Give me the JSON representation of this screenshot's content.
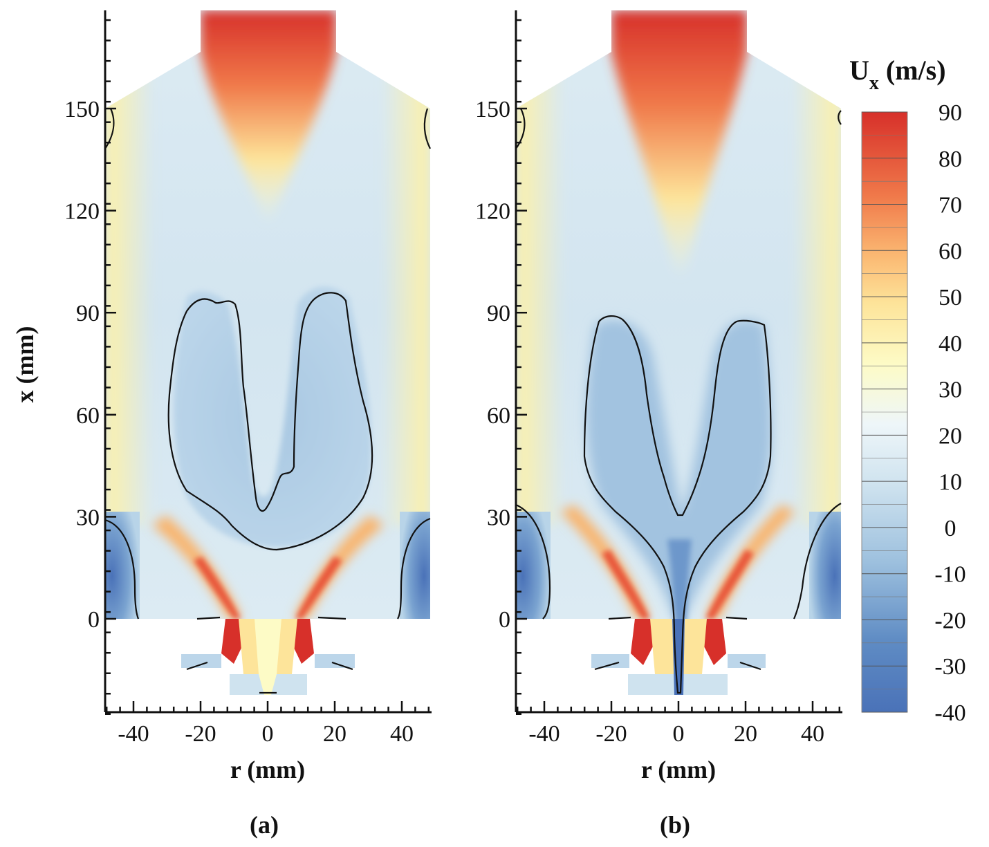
{
  "chart_data": [
    {
      "panel": "(a)",
      "type": "heatmap",
      "quantity": "U_x",
      "xlabel": "r (mm)",
      "ylabel": "x (mm)",
      "xlim": [
        -48,
        48
      ],
      "ylim": [
        -28,
        180
      ],
      "xticks": [
        -40,
        -20,
        0,
        20,
        40
      ],
      "yticks": [
        0,
        30,
        60,
        90,
        120,
        150
      ],
      "features": {
        "zero_velocity_contour_top_x_mm": 96,
        "central_recirculation_bottom_x_mm": 20,
        "inner_lobe_bottom_x_mm": 32
      }
    },
    {
      "panel": "(b)",
      "type": "heatmap",
      "quantity": "U_x",
      "xlabel": "r (mm)",
      "ylabel": "x (mm)",
      "xlim": [
        -48,
        48
      ],
      "ylim": [
        -28,
        180
      ],
      "xticks": [
        -40,
        -20,
        0,
        20,
        40
      ],
      "yticks": [
        0,
        30,
        60,
        90,
        120,
        150
      ],
      "features": {
        "zero_velocity_contour_top_x_mm": 90,
        "central_recirculation_bottom_x_mm": -22,
        "inner_lobe_bottom_x_mm": 29
      }
    }
  ],
  "colorbar": {
    "title_main": "U",
    "title_sub": "x",
    "title_unit": "(m/s)",
    "ticks": [
      "90",
      "80",
      "70",
      "60",
      "50",
      "40",
      "30",
      "20",
      "10",
      "0",
      "-10",
      "-20",
      "-30",
      "-40"
    ],
    "min": -40,
    "max": 90,
    "colors": [
      "#4a72b8",
      "#7aa3d0",
      "#b8d4e8",
      "#eaf4f8",
      "#fdfbc6",
      "#fdd17a",
      "#f48a50",
      "#d7302a"
    ]
  },
  "axes": {
    "xlabel": "r (mm)",
    "ylabel": "x (mm)"
  },
  "panels": {
    "a": "(a)",
    "b": "(b)"
  }
}
